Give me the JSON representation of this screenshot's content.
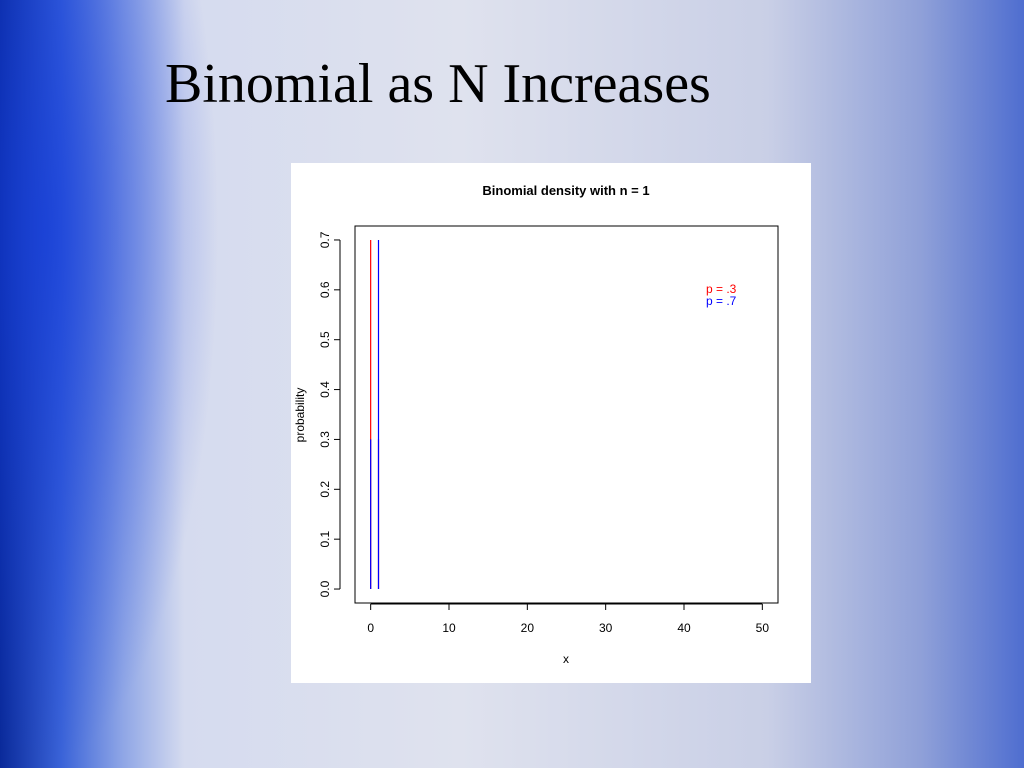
{
  "slide": {
    "title": "Binomial as N Increases"
  },
  "chart_data": {
    "type": "line",
    "style": "vertical-lines",
    "title": "Binomial density with n =  1",
    "x_label": "x",
    "y_label": "probability",
    "x": [
      0,
      1
    ],
    "series": [
      {
        "name": "p = .3",
        "color": "#ff0000",
        "values": [
          0.7,
          0.3
        ]
      },
      {
        "name": "p = .7",
        "color": "#0000ff",
        "values": [
          0.3,
          0.7
        ]
      }
    ],
    "xlim": [
      -2,
      52
    ],
    "xticks": [
      0,
      10,
      20,
      30,
      40,
      50
    ],
    "ylim": [
      -0.028,
      0.728
    ],
    "yticks": [
      {
        "value": 0,
        "label": "0.0"
      },
      0.1,
      0.2,
      0.3,
      0.4,
      0.5,
      0.6,
      0.7
    ],
    "legend": "right"
  }
}
